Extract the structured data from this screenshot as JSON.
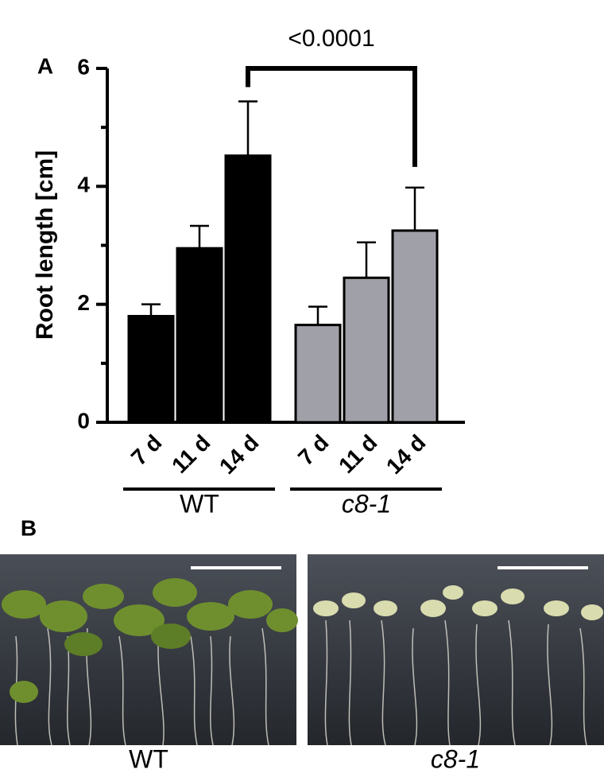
{
  "chart_data": {
    "type": "bar",
    "ylabel": "Root length [cm]",
    "categories": [
      "7 d",
      "11 d",
      "14 d"
    ],
    "series": [
      {
        "name": "WT",
        "color": "#000000",
        "values": [
          1.8,
          2.95,
          4.52
        ],
        "errors": [
          0.2,
          0.38,
          0.92
        ]
      },
      {
        "name": "c8-1",
        "color": "#a0a0a8",
        "values": [
          1.65,
          2.45,
          3.25
        ],
        "errors": [
          0.31,
          0.6,
          0.73
        ]
      }
    ],
    "ylim": [
      0,
      6
    ],
    "yticks": [
      0,
      2,
      4,
      6
    ],
    "yticks_minor": [
      1,
      3,
      5
    ],
    "annotation": "<0.0001"
  },
  "panels": {
    "a_label": "A",
    "b_label": "B",
    "photo_captions": [
      "WT",
      "c8-1"
    ]
  }
}
